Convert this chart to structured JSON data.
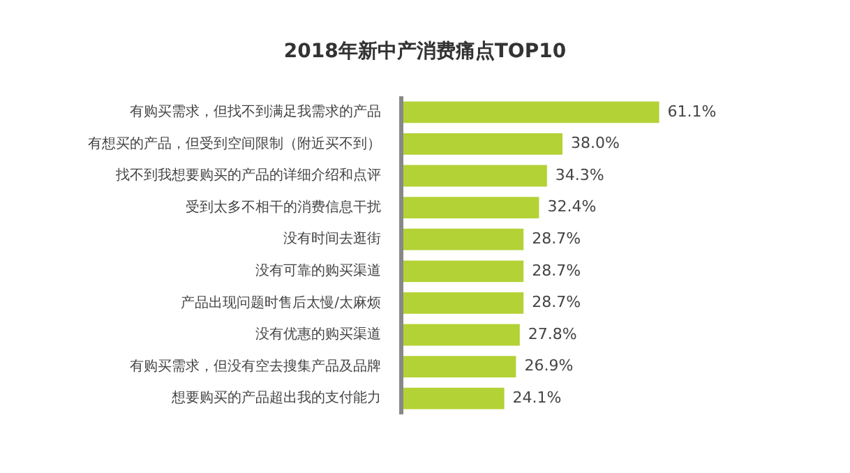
{
  "chart_data": {
    "type": "bar",
    "orientation": "horizontal",
    "title": "2018年新中产消费痛点TOP10",
    "categories": [
      "有购买需求，但找不到满足我需求的产品",
      "有想买的产品，但受到空间限制（附近买不到）",
      "找不到我想要购买的产品的详细介绍和点评",
      "受到太多不相干的消费信息干扰",
      "没有时间去逛街",
      "没有可靠的购买渠道",
      "产品出现问题时售后太慢/太麻烦",
      "没有优惠的购买渠道",
      "有购买需求，但没有空去搜集产品及品牌",
      "想要购买的产品超出我的支付能力"
    ],
    "values": [
      61.1,
      38.0,
      34.3,
      32.4,
      28.7,
      28.7,
      28.7,
      27.8,
      26.9,
      24.1
    ],
    "value_labels": [
      "61.1%",
      "38.0%",
      "34.3%",
      "32.4%",
      "28.7%",
      "28.7%",
      "28.7%",
      "27.8%",
      "26.9%",
      "24.1%"
    ],
    "color": "#b3d235"
  }
}
